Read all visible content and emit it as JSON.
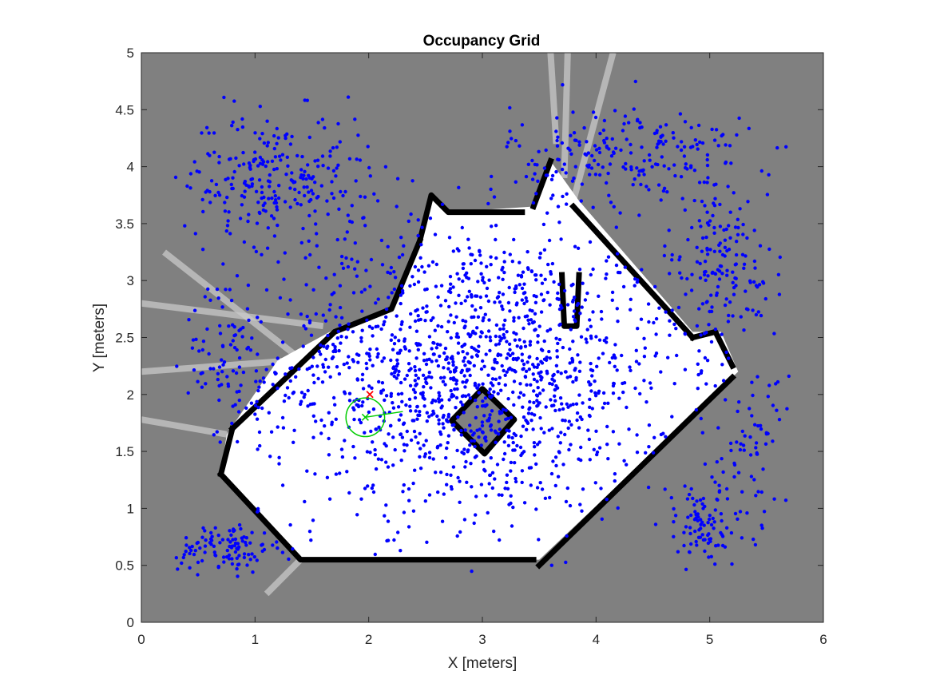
{
  "chart_data": {
    "type": "scatter",
    "title": "Occupancy Grid",
    "xlabel": "X [meters]",
    "ylabel": "Y [meters]",
    "xlim": [
      0,
      6
    ],
    "ylim": [
      0,
      5
    ],
    "xticks": [
      "0",
      "1",
      "2",
      "3",
      "4",
      "5",
      "6"
    ],
    "yticks": [
      "0",
      "0.5",
      "1",
      "1.5",
      "2",
      "2.5",
      "3",
      "3.5",
      "4",
      "4.5",
      "5"
    ],
    "grid": false,
    "background_color": "#808080",
    "free_space_color": "#ffffff",
    "wall_color": "#000000",
    "particle_color": "#0000ff",
    "estimate_color": "#00cc00",
    "goal_color": "#ff0000",
    "free_region": [
      [
        0.7,
        1.3
      ],
      [
        1.4,
        0.55
      ],
      [
        3.5,
        0.55
      ],
      [
        5.25,
        2.2
      ],
      [
        5.1,
        2.55
      ],
      [
        4.85,
        2.55
      ],
      [
        3.85,
        3.7
      ],
      [
        3.6,
        4.05
      ],
      [
        3.45,
        3.65
      ],
      [
        2.7,
        3.6
      ],
      [
        2.55,
        3.75
      ],
      [
        2.45,
        3.35
      ],
      [
        2.2,
        2.75
      ],
      [
        1.75,
        2.6
      ],
      [
        1.2,
        2.3
      ],
      [
        0.75,
        1.65
      ]
    ],
    "walls": [
      [
        [
          0.7,
          1.3
        ],
        [
          1.4,
          0.55
        ],
        [
          3.45,
          0.55
        ]
      ],
      [
        [
          3.5,
          0.5
        ],
        [
          5.2,
          2.15
        ]
      ],
      [
        [
          5.2,
          2.25
        ],
        [
          5.05,
          2.55
        ],
        [
          4.85,
          2.5
        ]
      ],
      [
        [
          4.85,
          2.5
        ],
        [
          3.8,
          3.65
        ]
      ],
      [
        [
          3.6,
          4.05
        ],
        [
          3.45,
          3.65
        ]
      ],
      [
        [
          3.35,
          3.6
        ],
        [
          2.7,
          3.6
        ],
        [
          2.55,
          3.75
        ],
        [
          2.45,
          3.35
        ]
      ],
      [
        [
          2.45,
          3.35
        ],
        [
          2.2,
          2.75
        ],
        [
          1.7,
          2.55
        ],
        [
          0.8,
          1.7
        ]
      ],
      [
        [
          0.8,
          1.7
        ],
        [
          0.7,
          1.3
        ]
      ],
      [
        [
          3.7,
          3.05
        ],
        [
          3.72,
          2.6
        ],
        [
          3.83,
          2.6
        ],
        [
          3.85,
          3.05
        ]
      ]
    ],
    "obstacle": [
      [
        3.0,
        2.05
      ],
      [
        3.28,
        1.78
      ],
      [
        3.02,
        1.48
      ],
      [
        2.73,
        1.77
      ]
    ],
    "sensor_rays": [
      [
        [
          0.2,
          3.25
        ],
        [
          1.35,
          2.35
        ]
      ],
      [
        [
          0.0,
          2.8
        ],
        [
          1.6,
          2.6
        ]
      ],
      [
        [
          0.0,
          2.2
        ],
        [
          1.35,
          2.3
        ]
      ],
      [
        [
          0.0,
          1.78
        ],
        [
          0.75,
          1.65
        ]
      ],
      [
        [
          1.1,
          0.25
        ],
        [
          1.4,
          0.55
        ]
      ],
      [
        [
          3.6,
          5.0
        ],
        [
          3.65,
          4.2
        ]
      ],
      [
        [
          3.75,
          5.0
        ],
        [
          3.72,
          3.9
        ]
      ],
      [
        [
          4.15,
          5.0
        ],
        [
          3.8,
          3.7
        ]
      ]
    ],
    "pose_estimate": {
      "x": 1.97,
      "y": 1.8,
      "radius": 0.17,
      "heading_end": [
        2.3,
        1.85
      ]
    },
    "goal": {
      "x": 2.01,
      "y": 2.0
    },
    "particle_clusters": [
      {
        "cx": 2.9,
        "cy": 2.2,
        "sx": 1.2,
        "sy": 0.85,
        "n": 1500
      },
      {
        "cx": 1.2,
        "cy": 3.9,
        "sx": 0.55,
        "sy": 0.38,
        "n": 260
      },
      {
        "cx": 4.3,
        "cy": 4.1,
        "sx": 0.7,
        "sy": 0.3,
        "n": 220
      },
      {
        "cx": 5.1,
        "cy": 3.1,
        "sx": 0.35,
        "sy": 0.45,
        "n": 160
      },
      {
        "cx": 0.8,
        "cy": 2.35,
        "sx": 0.28,
        "sy": 0.35,
        "n": 70
      },
      {
        "cx": 0.75,
        "cy": 0.65,
        "sx": 0.28,
        "sy": 0.15,
        "n": 110
      },
      {
        "cx": 4.95,
        "cy": 0.85,
        "sx": 0.3,
        "sy": 0.28,
        "n": 100
      },
      {
        "cx": 5.4,
        "cy": 1.6,
        "sx": 0.2,
        "sy": 0.4,
        "n": 60
      }
    ]
  }
}
